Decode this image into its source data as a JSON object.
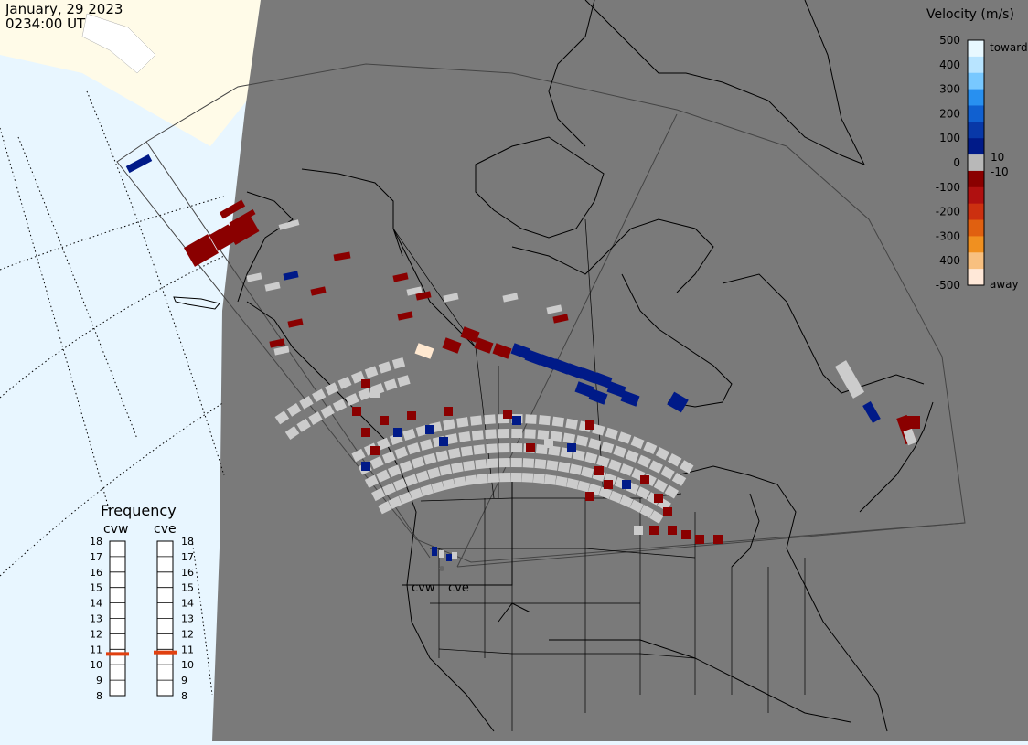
{
  "header": {
    "date": "January, 29 2023",
    "time": "0234:00 UT"
  },
  "velocity_scale": {
    "title": "Velocity (m/s)",
    "ticks": [
      "500",
      "400",
      "300",
      "200",
      "100",
      "0",
      "-100",
      "-200",
      "-300",
      "-400",
      "-500"
    ],
    "inner_ticks": [
      "10",
      "-10"
    ],
    "toward_label": "toward",
    "away_label": "away",
    "colors": [
      "#e8f8ff",
      "#b8e4ff",
      "#78c8ff",
      "#2890f0",
      "#1060d0",
      "#0838a8",
      "#001a88",
      "#b8b8b8",
      "#8a0000",
      "#b01010",
      "#cc3010",
      "#e06010",
      "#f09020",
      "#f8c080",
      "#ffe8d8"
    ]
  },
  "frequency_panel": {
    "title": "Frequency",
    "radars": [
      {
        "name": "cvw",
        "value": 10.7
      },
      {
        "name": "cve",
        "value": 10.8
      }
    ],
    "ticks": [
      "18",
      "17",
      "16",
      "15",
      "14",
      "13",
      "12",
      "11",
      "10",
      "9",
      "8"
    ]
  },
  "radar_sites": {
    "cvw_label": "cvw",
    "cve_label": "cve"
  },
  "colors": {
    "ground_scatter": "#cccccc",
    "land": "#7a7a7a",
    "ocean": "#e8f6ff",
    "ice": "#fffbe8",
    "toward": "#001a88",
    "away": "#8a0000"
  }
}
